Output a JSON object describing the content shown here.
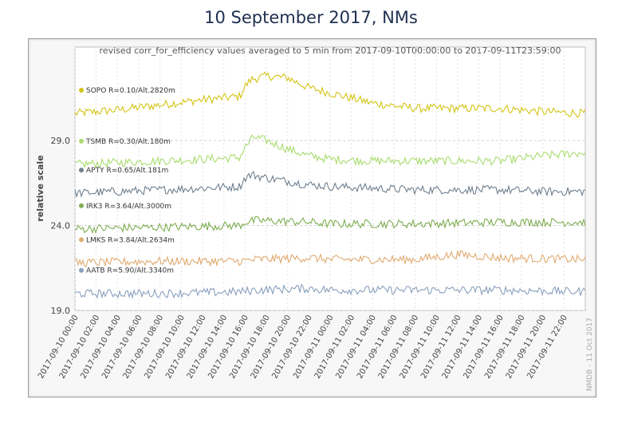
{
  "slide": {
    "title": "10 September 2017, NMs"
  },
  "chart_data": {
    "type": "line",
    "title": "revised corr_for_efficiency values averaged to 5 min from 2017-09-10T00:00:00 to 2017-09-11T23:59:00",
    "xlabel": "",
    "ylabel": "relative scale",
    "watermark": "NMDB - 11 Oct 2017",
    "ylim": [
      19.0,
      34.5
    ],
    "yticks": [
      19.0,
      24.0,
      29.0
    ],
    "ytick_labels": [
      "19.0",
      "24.0",
      "29.0"
    ],
    "grid": true,
    "x_start_hours": 0,
    "x_end_hours": 48,
    "x_tick_labels": [
      "2017-09-10 00:00",
      "2017-09-10 02:00",
      "2017-09-10 04:00",
      "2017-09-10 06:00",
      "2017-09-10 08:00",
      "2017-09-10 10:00",
      "2017-09-10 12:00",
      "2017-09-10 14:00",
      "2017-09-10 16:00",
      "2017-09-10 18:00",
      "2017-09-10 20:00",
      "2017-09-10 22:00",
      "2017-09-11 00:00",
      "2017-09-11 02:00",
      "2017-09-11 04:00",
      "2017-09-11 06:00",
      "2017-09-11 08:00",
      "2017-09-11 10:00",
      "2017-09-11 12:00",
      "2017-09-11 14:00",
      "2017-09-11 16:00",
      "2017-09-11 18:00",
      "2017-09-11 20:00",
      "2017-09-11 22:00"
    ],
    "x_tick_hours": [
      0,
      2,
      4,
      6,
      8,
      10,
      12,
      14,
      16,
      18,
      20,
      22,
      24,
      26,
      28,
      30,
      32,
      34,
      36,
      38,
      40,
      42,
      44,
      46
    ],
    "series": [
      {
        "name": "SOPO R=0.10/Alt.2820m",
        "color": "#d4c416",
        "x_hours": [
          0,
          4,
          8,
          12,
          15.5,
          16,
          16.6,
          18,
          20,
          22,
          24,
          28,
          32,
          36,
          40,
          44,
          48
        ],
        "values": [
          30.6,
          30.8,
          31.1,
          31.4,
          31.6,
          32.2,
          32.6,
          32.8,
          32.7,
          32.1,
          31.8,
          31.2,
          30.9,
          30.9,
          30.9,
          30.7,
          30.6
        ]
      },
      {
        "name": "TSMB R=0.30/Alt.180m",
        "color": "#a8dc6e",
        "x_hours": [
          0,
          4,
          8,
          12,
          15.5,
          16,
          16.8,
          18,
          20,
          22,
          24,
          28,
          32,
          36,
          40,
          44,
          48
        ],
        "values": [
          27.6,
          27.7,
          27.8,
          27.9,
          28.0,
          28.6,
          29.2,
          29.0,
          28.5,
          28.1,
          27.9,
          27.8,
          27.8,
          27.8,
          27.8,
          28.1,
          28.3
        ]
      },
      {
        "name": "APTY R=0.65/Alt.181m",
        "color": "#6f7f8f",
        "x_hours": [
          0,
          4,
          8,
          12,
          15.5,
          16,
          16.6,
          18,
          22,
          24,
          28,
          32,
          36,
          40,
          44,
          48
        ],
        "values": [
          25.9,
          26.0,
          26.1,
          26.2,
          26.3,
          26.8,
          27.0,
          26.8,
          26.4,
          26.3,
          26.2,
          26.1,
          26.1,
          26.1,
          26.0,
          26.0
        ]
      },
      {
        "name": "IRK3 R=3.64/Alt.3000m",
        "color": "#7fae52",
        "x_hours": [
          0,
          8,
          15.5,
          16,
          17,
          22,
          24,
          32,
          40,
          48
        ],
        "values": [
          23.8,
          23.9,
          24.0,
          24.2,
          24.3,
          24.2,
          24.1,
          24.1,
          24.2,
          24.2
        ]
      },
      {
        "name": "LMKS R=3.84/Alt.2634m",
        "color": "#e0aa70",
        "x_hours": [
          0,
          8,
          15.5,
          17,
          22,
          24,
          32,
          36,
          40,
          48
        ],
        "values": [
          21.8,
          21.9,
          21.9,
          22.0,
          22.1,
          22.0,
          22.0,
          22.3,
          22.1,
          22.0
        ]
      },
      {
        "name": "AATB R=5.90/Alt.3340m",
        "color": "#8aa0bd",
        "x_hours": [
          0,
          8,
          15.5,
          17,
          22,
          24,
          32,
          40,
          48
        ],
        "values": [
          20.0,
          20.0,
          20.1,
          20.2,
          20.3,
          20.2,
          20.2,
          20.2,
          20.1
        ]
      }
    ]
  }
}
